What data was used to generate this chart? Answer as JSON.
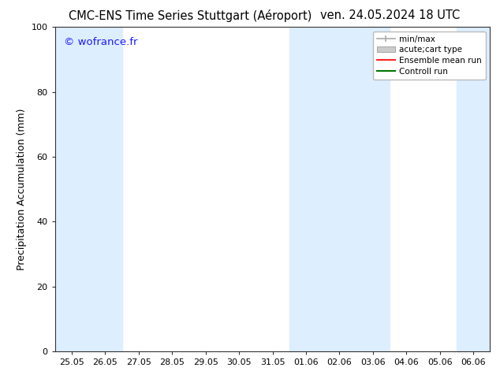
{
  "title_left": "CMC-ENS Time Series Stuttgart (Aéroport)",
  "title_right": "ven. 24.05.2024 18 UTC",
  "ylabel": "Precipitation Accumulation (mm)",
  "ylim": [
    0,
    100
  ],
  "yticks": [
    0,
    20,
    40,
    60,
    80,
    100
  ],
  "xlabels": [
    "25.05",
    "26.05",
    "27.05",
    "28.05",
    "29.05",
    "30.05",
    "31.05",
    "01.06",
    "02.06",
    "03.06",
    "04.06",
    "05.06",
    "06.06"
  ],
  "watermark": "© wofrance.fr",
  "watermark_color": "#1a1aff",
  "shade_color": "#ddeeff",
  "shaded_indices": [
    0,
    1,
    7,
    8,
    9,
    12
  ],
  "legend_entries": [
    {
      "label": "min/max",
      "color": "#aaaaaa",
      "style": "errorbar"
    },
    {
      "label": "acute;cart type",
      "color": "#cccccc",
      "style": "box"
    },
    {
      "label": "Ensemble mean run",
      "color": "#ff2222",
      "style": "line"
    },
    {
      "label": "Controll run",
      "color": "#007700",
      "style": "line"
    }
  ],
  "bg_color": "#ffffff",
  "plot_bg_color": "#ffffff",
  "spine_color": "#333333",
  "tick_color": "#333333",
  "title_fontsize": 10.5,
  "ylabel_fontsize": 9,
  "tick_fontsize": 8
}
